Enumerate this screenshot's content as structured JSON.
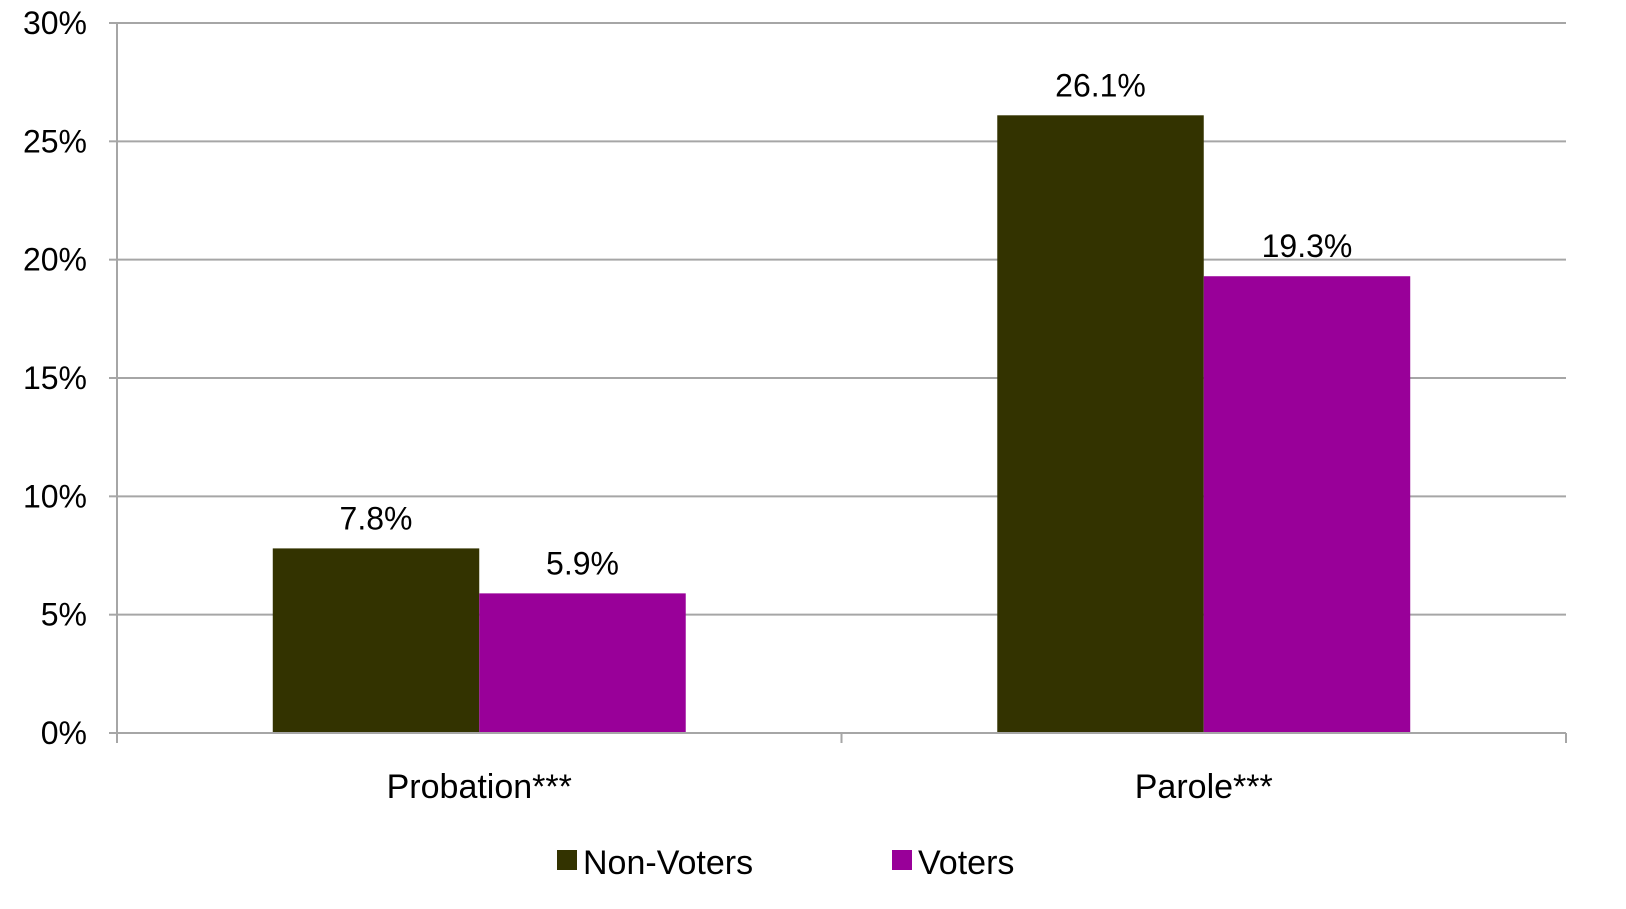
{
  "chart_data": {
    "type": "bar",
    "categories": [
      "Probation***",
      "Parole***"
    ],
    "series": [
      {
        "name": "Non-Voters",
        "values": [
          7.8,
          26.1
        ],
        "color": "#333300"
      },
      {
        "name": "Voters",
        "values": [
          5.9,
          19.3
        ],
        "color": "#990099"
      }
    ],
    "data_labels": [
      [
        "7.8%",
        "26.1%"
      ],
      [
        "5.9%",
        "19.3%"
      ]
    ],
    "ylim": [
      0,
      30
    ],
    "yticks": [
      0,
      5,
      10,
      15,
      20,
      25,
      30
    ],
    "ytick_labels": [
      "0%",
      "5%",
      "10%",
      "15%",
      "20%",
      "25%",
      "30%"
    ],
    "title": "",
    "xlabel": "",
    "ylabel": "",
    "grid": true,
    "legend_position": "bottom",
    "gridline_color": "#a6a6a6"
  }
}
